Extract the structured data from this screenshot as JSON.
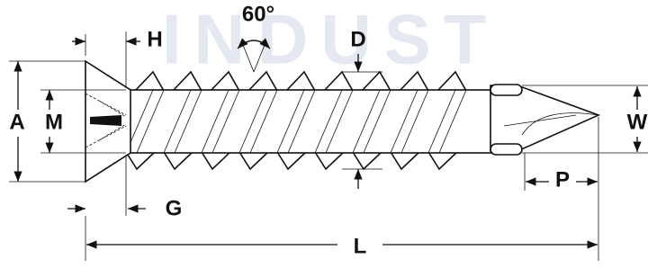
{
  "watermark": "INDUST",
  "labels": {
    "angle": "60°",
    "H": "H",
    "D": "D",
    "A": "A",
    "M": "M",
    "W": "W",
    "G": "G",
    "P": "P",
    "L": "L"
  }
}
